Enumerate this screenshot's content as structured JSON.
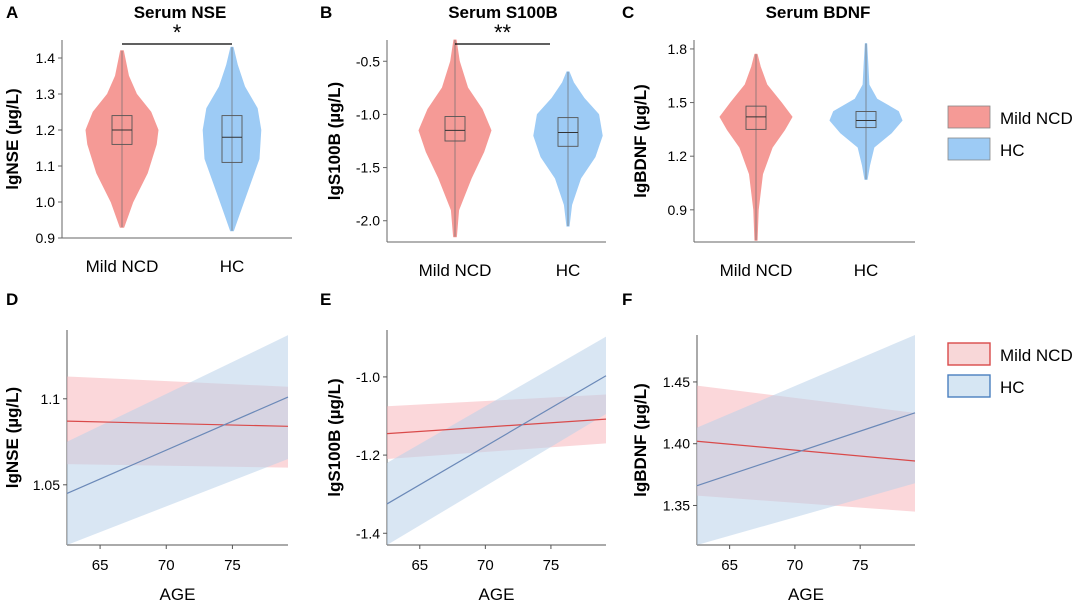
{
  "figure": {
    "panel_letters": [
      "A",
      "B",
      "C",
      "D",
      "E",
      "F"
    ],
    "legend_top": {
      "entries": [
        "Mild NCD",
        "HC"
      ],
      "colors": [
        "#f59a96",
        "#9dcbf5"
      ]
    },
    "legend_bottom": {
      "entries": [
        "Mild NCD",
        "HC"
      ],
      "colors": [
        "#f8d7d8",
        "#d6e6f3"
      ],
      "borders": [
        "#d94a4a",
        "#4a7fbf"
      ]
    }
  },
  "chart_data": [
    {
      "type": "violin",
      "panel": "A",
      "title": "Serum NSE",
      "ylabel": "lgNSE (µg/L)",
      "xlabel": "",
      "ylim": [
        0.9,
        1.45
      ],
      "yticks": [
        0.9,
        1.0,
        1.1,
        1.2,
        1.3,
        1.4
      ],
      "yticklabels": [
        "0.9",
        "1.0",
        "1.1",
        "1.2",
        "1.3",
        "1.4"
      ],
      "categories": [
        "Mild NCD",
        "HC"
      ],
      "series": [
        {
          "name": "Mild NCD",
          "min": 0.93,
          "q1": 1.16,
          "median": 1.2,
          "q3": 1.24,
          "max": 1.42,
          "color": "#f59a96",
          "density": [
            [
              0.93,
              0.05
            ],
            [
              1.0,
              0.3
            ],
            [
              1.08,
              0.7
            ],
            [
              1.16,
              0.95
            ],
            [
              1.2,
              1.0
            ],
            [
              1.25,
              0.8
            ],
            [
              1.3,
              0.4
            ],
            [
              1.35,
              0.18
            ],
            [
              1.42,
              0.04
            ]
          ]
        },
        {
          "name": "HC",
          "min": 0.92,
          "q1": 1.11,
          "median": 1.18,
          "q3": 1.24,
          "max": 1.43,
          "color": "#9dcbf5",
          "density": [
            [
              0.92,
              0.04
            ],
            [
              0.98,
              0.25
            ],
            [
              1.05,
              0.5
            ],
            [
              1.12,
              0.75
            ],
            [
              1.2,
              0.8
            ],
            [
              1.26,
              0.7
            ],
            [
              1.32,
              0.35
            ],
            [
              1.38,
              0.15
            ],
            [
              1.43,
              0.03
            ]
          ]
        }
      ],
      "significance": {
        "from": "Mild NCD",
        "to": "HC",
        "label": "*"
      }
    },
    {
      "type": "violin",
      "panel": "B",
      "title": "Serum  S100B",
      "ylabel": "lgS100B (µg/L)",
      "xlabel": "",
      "ylim": [
        -2.2,
        -0.3
      ],
      "yticks": [
        -2.0,
        -1.5,
        -1.0,
        -0.5
      ],
      "yticklabels": [
        "-2.0",
        "-1.5",
        "-1.0",
        "-0.5"
      ],
      "categories": [
        "Mild NCD",
        "HC"
      ],
      "series": [
        {
          "name": "Mild NCD",
          "min": -2.15,
          "q1": -1.25,
          "median": -1.15,
          "q3": -1.02,
          "max": -0.3,
          "color": "#f59a96",
          "density": [
            [
              -2.15,
              0.04
            ],
            [
              -1.9,
              0.1
            ],
            [
              -1.6,
              0.45
            ],
            [
              -1.35,
              0.8
            ],
            [
              -1.15,
              1.0
            ],
            [
              -0.95,
              0.75
            ],
            [
              -0.75,
              0.35
            ],
            [
              -0.5,
              0.12
            ],
            [
              -0.3,
              0.03
            ]
          ]
        },
        {
          "name": "HC",
          "min": -2.05,
          "q1": -1.3,
          "median": -1.17,
          "q3": -1.03,
          "max": -0.6,
          "color": "#9dcbf5",
          "density": [
            [
              -2.05,
              0.03
            ],
            [
              -1.85,
              0.1
            ],
            [
              -1.6,
              0.35
            ],
            [
              -1.4,
              0.75
            ],
            [
              -1.2,
              0.95
            ],
            [
              -1.0,
              0.85
            ],
            [
              -0.85,
              0.45
            ],
            [
              -0.7,
              0.15
            ],
            [
              -0.6,
              0.03
            ]
          ]
        }
      ],
      "significance": {
        "from": "Mild NCD",
        "to": "HC",
        "label": "**"
      }
    },
    {
      "type": "violin",
      "panel": "C",
      "title": "Serum BDNF",
      "ylabel": "lgBDNF (µg/L)",
      "xlabel": "",
      "ylim": [
        0.72,
        1.85
      ],
      "yticks": [
        0.9,
        1.2,
        1.5,
        1.8
      ],
      "yticklabels": [
        "0.9",
        "1.2",
        "1.5",
        "1.8"
      ],
      "categories": [
        "Mild NCD",
        "HC"
      ],
      "series": [
        {
          "name": "Mild NCD",
          "min": 0.73,
          "q1": 1.35,
          "median": 1.42,
          "q3": 1.48,
          "max": 1.77,
          "color": "#f59a96",
          "density": [
            [
              0.73,
              0.03
            ],
            [
              0.9,
              0.06
            ],
            [
              1.1,
              0.18
            ],
            [
              1.25,
              0.45
            ],
            [
              1.35,
              0.8
            ],
            [
              1.42,
              1.0
            ],
            [
              1.5,
              0.7
            ],
            [
              1.6,
              0.3
            ],
            [
              1.7,
              0.12
            ],
            [
              1.77,
              0.03
            ]
          ]
        },
        {
          "name": "HC",
          "min": 1.07,
          "q1": 1.36,
          "median": 1.4,
          "q3": 1.45,
          "max": 1.83,
          "color": "#9dcbf5",
          "density": [
            [
              1.07,
              0.03
            ],
            [
              1.15,
              0.1
            ],
            [
              1.25,
              0.22
            ],
            [
              1.33,
              0.7
            ],
            [
              1.4,
              1.0
            ],
            [
              1.45,
              0.9
            ],
            [
              1.52,
              0.3
            ],
            [
              1.6,
              0.08
            ],
            [
              1.72,
              0.05
            ],
            [
              1.83,
              0.02
            ]
          ]
        }
      ],
      "significance": null
    },
    {
      "type": "line",
      "panel": "D",
      "title": "",
      "ylabel": "lgNSE (µg/L)",
      "xlabel": "AGE",
      "xlim": [
        62.5,
        79.2
      ],
      "ylim": [
        1.015,
        1.14
      ],
      "xticks": [
        65,
        70,
        75
      ],
      "xticklabels": [
        "65",
        "70",
        "75"
      ],
      "yticks": [
        1.05,
        1.1
      ],
      "yticklabels": [
        "1.05",
        "1.1"
      ],
      "series": [
        {
          "name": "Mild NCD",
          "x": [
            62.5,
            79.2
          ],
          "y": [
            1.087,
            1.084
          ],
          "lower": [
            1.062,
            1.06
          ],
          "upper": [
            1.113,
            1.107
          ],
          "line": "#d94a4a",
          "fill": "#f8b6bb"
        },
        {
          "name": "HC",
          "x": [
            62.5,
            79.2
          ],
          "y": [
            1.045,
            1.101
          ],
          "lower": [
            1.015,
            1.065
          ],
          "upper": [
            1.075,
            1.137
          ],
          "line": "#6b89b8",
          "fill": "#b9d2ea"
        }
      ]
    },
    {
      "type": "line",
      "panel": "E",
      "title": "",
      "ylabel": "lgS100B (µg/L)",
      "xlabel": "AGE",
      "xlim": [
        62.5,
        79.2
      ],
      "ylim": [
        -1.43,
        -0.88
      ],
      "xticks": [
        65,
        70,
        75
      ],
      "xticklabels": [
        "65",
        "70",
        "75"
      ],
      "yticks": [
        -1.4,
        -1.2,
        -1.0
      ],
      "yticklabels": [
        "-1.4",
        "-1.2",
        "-1.0"
      ],
      "series": [
        {
          "name": "Mild NCD",
          "x": [
            62.5,
            79.2
          ],
          "y": [
            -1.145,
            -1.108
          ],
          "lower": [
            -1.21,
            -1.17
          ],
          "upper": [
            -1.075,
            -1.045
          ],
          "line": "#d94a4a",
          "fill": "#f8b6bb"
        },
        {
          "name": "HC",
          "x": [
            62.5,
            79.2
          ],
          "y": [
            -1.325,
            -0.997
          ],
          "lower": [
            -1.43,
            -1.095
          ],
          "upper": [
            -1.22,
            -0.897
          ],
          "line": "#6b89b8",
          "fill": "#b9d2ea"
        }
      ]
    },
    {
      "type": "line",
      "panel": "F",
      "title": "",
      "ylabel": "lgBDNF (µg/L)",
      "xlabel": "AGE",
      "xlim": [
        62.5,
        79.2
      ],
      "ylim": [
        1.318,
        1.488
      ],
      "xticks": [
        65,
        70,
        75
      ],
      "xticklabels": [
        "65",
        "70",
        "75"
      ],
      "yticks": [
        1.35,
        1.4,
        1.45
      ],
      "yticklabels": [
        "1.35",
        "1.40",
        "1.45"
      ],
      "series": [
        {
          "name": "Mild NCD",
          "x": [
            62.5,
            79.2
          ],
          "y": [
            1.402,
            1.386
          ],
          "lower": [
            1.358,
            1.345
          ],
          "upper": [
            1.447,
            1.425
          ],
          "line": "#d94a4a",
          "fill": "#f8b6bb"
        },
        {
          "name": "HC",
          "x": [
            62.5,
            79.2
          ],
          "y": [
            1.366,
            1.425
          ],
          "lower": [
            1.318,
            1.368
          ],
          "upper": [
            1.413,
            1.488
          ],
          "line": "#6b89b8",
          "fill": "#b9d2ea"
        }
      ]
    }
  ]
}
